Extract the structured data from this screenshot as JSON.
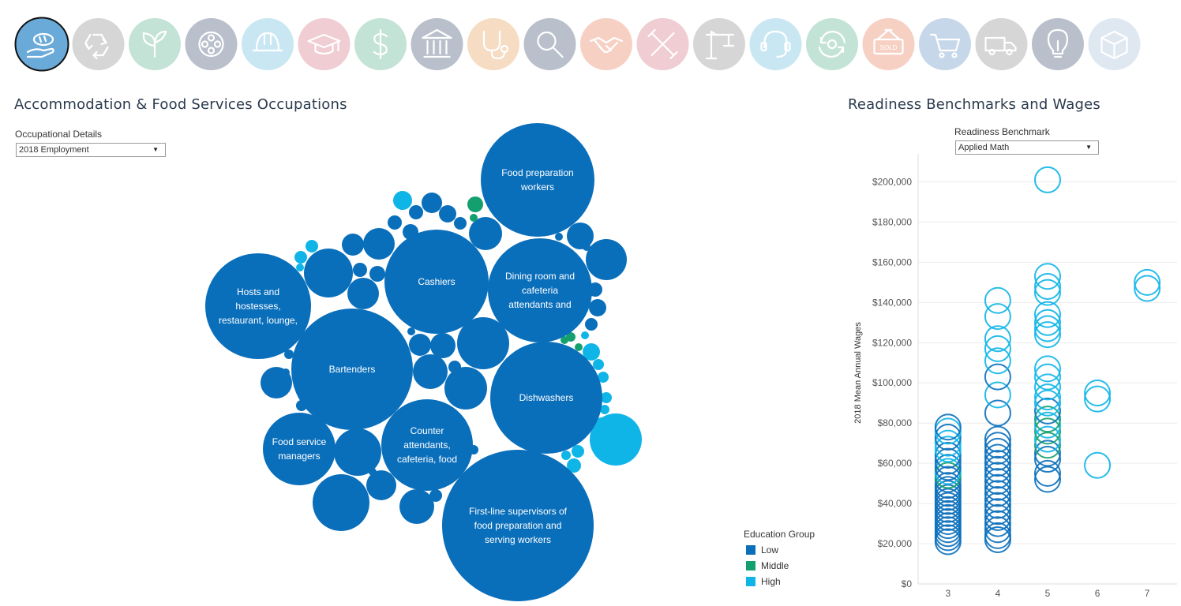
{
  "top_nav": {
    "items": [
      {
        "name": "hospitality",
        "icon": "hand-bread-icon",
        "color": "#6aaad8",
        "selected": true
      },
      {
        "name": "recycling",
        "icon": "recycle-icon",
        "color": "#d6d6d6"
      },
      {
        "name": "agriculture",
        "icon": "leaf-sprout-icon",
        "color": "#c3e3d6"
      },
      {
        "name": "media",
        "icon": "film-reel-icon",
        "color": "#b9c0cc"
      },
      {
        "name": "construction",
        "icon": "hard-hat-icon",
        "color": "#c9e7f3"
      },
      {
        "name": "education",
        "icon": "graduation-cap-icon",
        "color": "#f0ccd3"
      },
      {
        "name": "finance",
        "icon": "dollar-icon",
        "color": "#c3e3d6"
      },
      {
        "name": "government",
        "icon": "bank-building-icon",
        "color": "#b9c0cc"
      },
      {
        "name": "healthcare",
        "icon": "stethoscope-icon",
        "color": "#f7dcc4"
      },
      {
        "name": "research",
        "icon": "magnifier-icon",
        "color": "#b9c0cc"
      },
      {
        "name": "business",
        "icon": "handshake-icon",
        "color": "#f7d0c4"
      },
      {
        "name": "repair",
        "icon": "tools-icon",
        "color": "#f0ccd3"
      },
      {
        "name": "engineering",
        "icon": "crane-icon",
        "color": "#d6d6d6"
      },
      {
        "name": "support",
        "icon": "headset-icon",
        "color": "#c9e7f3"
      },
      {
        "name": "services",
        "icon": "refresh-gear-icon",
        "color": "#c3e3d6"
      },
      {
        "name": "sales",
        "icon": "sold-sign-icon",
        "color": "#f7d0c4",
        "label": "SOLD"
      },
      {
        "name": "retail",
        "icon": "shopping-cart-icon",
        "color": "#c6d7ea"
      },
      {
        "name": "transportation",
        "icon": "truck-icon",
        "color": "#d6d6d6"
      },
      {
        "name": "innovation",
        "icon": "light-bulb-icon",
        "color": "#b9c0cc"
      },
      {
        "name": "manufacturing",
        "icon": "box-icon",
        "color": "#dfe8f1"
      }
    ]
  },
  "left_panel": {
    "title": "Accommodation & Food Services Occupations",
    "filter_label": "Occupational Details",
    "filter_value": "2018 Employment"
  },
  "right_panel": {
    "title": "Readiness Benchmarks and Wages",
    "filter_label": "Readiness Benchmark",
    "filter_value": "Applied Math"
  },
  "colors": {
    "low": "#0a6fbb",
    "middle": "#14a06e",
    "high": "#10b5e8",
    "gridline": "#ececec",
    "title": "#2b3b4e"
  },
  "legend": {
    "title": "Education Group",
    "items": [
      {
        "label": "Low",
        "color": "#0a6fbb"
      },
      {
        "label": "Middle",
        "color": "#14a06e"
      },
      {
        "label": "High",
        "color": "#10b5e8"
      }
    ]
  },
  "chart_data": [
    {
      "type": "bubble",
      "title": "Accommodation & Food Services Occupations",
      "size_measure": "2018 Employment",
      "color_field": "Education Group",
      "labeled_bubbles": [
        {
          "label": "Food preparation workers",
          "group": "Low"
        },
        {
          "label": "Cashiers",
          "group": "Low"
        },
        {
          "label": "Dining room and cafeteria attendants and",
          "group": "Low"
        },
        {
          "label": "Hosts and hostesses, restaurant, lounge,",
          "group": "Low"
        },
        {
          "label": "Bartenders",
          "group": "Low"
        },
        {
          "label": "Dishwashers",
          "group": "Low"
        },
        {
          "label": "Food service managers",
          "group": "Low"
        },
        {
          "label": "Counter attendants, cafeteria, food",
          "group": "Low"
        },
        {
          "label": "First-line supervisors of food preparation and serving workers",
          "group": "Low"
        }
      ]
    },
    {
      "type": "scatter",
      "title": "Readiness Benchmarks and Wages",
      "xlabel": "",
      "ylabel": "2018 Mean Annual Wages",
      "xticks": [
        3,
        4,
        5,
        6,
        7
      ],
      "xlim": [
        2.4,
        7.6
      ],
      "ylim": [
        0,
        210000
      ],
      "yticks": [
        0,
        20000,
        40000,
        60000,
        80000,
        100000,
        120000,
        140000,
        160000,
        180000,
        200000
      ],
      "ytick_labels": [
        "$0",
        "$20,000",
        "$40,000",
        "$60,000",
        "$80,000",
        "$100,000",
        "$120,000",
        "$140,000",
        "$160,000",
        "$180,000",
        "$200,000"
      ],
      "grid": true,
      "marker": "hollow-circle",
      "points": [
        {
          "x": 3,
          "y": 21000,
          "g": "Low"
        },
        {
          "x": 3,
          "y": 23000,
          "g": "Low"
        },
        {
          "x": 3,
          "y": 25000,
          "g": "Low"
        },
        {
          "x": 3,
          "y": 27000,
          "g": "Low"
        },
        {
          "x": 3,
          "y": 29000,
          "g": "Low"
        },
        {
          "x": 3,
          "y": 31000,
          "g": "Low"
        },
        {
          "x": 3,
          "y": 33000,
          "g": "Low"
        },
        {
          "x": 3,
          "y": 35000,
          "g": "Low"
        },
        {
          "x": 3,
          "y": 37000,
          "g": "Low"
        },
        {
          "x": 3,
          "y": 39000,
          "g": "Low"
        },
        {
          "x": 3,
          "y": 41000,
          "g": "Low"
        },
        {
          "x": 3,
          "y": 43000,
          "g": "Low"
        },
        {
          "x": 3,
          "y": 45000,
          "g": "Low"
        },
        {
          "x": 3,
          "y": 47000,
          "g": "Low"
        },
        {
          "x": 3,
          "y": 49000,
          "g": "Low"
        },
        {
          "x": 3,
          "y": 52000,
          "g": "Low"
        },
        {
          "x": 3,
          "y": 54000,
          "g": "Middle"
        },
        {
          "x": 3,
          "y": 56000,
          "g": "High"
        },
        {
          "x": 3,
          "y": 58000,
          "g": "Low"
        },
        {
          "x": 3,
          "y": 61000,
          "g": "Low"
        },
        {
          "x": 3,
          "y": 64000,
          "g": "Low"
        },
        {
          "x": 3,
          "y": 67000,
          "g": "High"
        },
        {
          "x": 3,
          "y": 70000,
          "g": "High"
        },
        {
          "x": 3,
          "y": 73000,
          "g": "Low"
        },
        {
          "x": 3,
          "y": 76000,
          "g": "High"
        },
        {
          "x": 3,
          "y": 78000,
          "g": "Low"
        },
        {
          "x": 4,
          "y": 22000,
          "g": "Low"
        },
        {
          "x": 4,
          "y": 24000,
          "g": "Low"
        },
        {
          "x": 4,
          "y": 27000,
          "g": "Low"
        },
        {
          "x": 4,
          "y": 30000,
          "g": "Low"
        },
        {
          "x": 4,
          "y": 33000,
          "g": "Low"
        },
        {
          "x": 4,
          "y": 36000,
          "g": "Low"
        },
        {
          "x": 4,
          "y": 39000,
          "g": "Low"
        },
        {
          "x": 4,
          "y": 42000,
          "g": "Low"
        },
        {
          "x": 4,
          "y": 45000,
          "g": "Low"
        },
        {
          "x": 4,
          "y": 48000,
          "g": "Low"
        },
        {
          "x": 4,
          "y": 51000,
          "g": "Low"
        },
        {
          "x": 4,
          "y": 54000,
          "g": "Low"
        },
        {
          "x": 4,
          "y": 57000,
          "g": "Low"
        },
        {
          "x": 4,
          "y": 60000,
          "g": "Low"
        },
        {
          "x": 4,
          "y": 63000,
          "g": "Low"
        },
        {
          "x": 4,
          "y": 66000,
          "g": "Low"
        },
        {
          "x": 4,
          "y": 69000,
          "g": "Low"
        },
        {
          "x": 4,
          "y": 72000,
          "g": "Low"
        },
        {
          "x": 4,
          "y": 85000,
          "g": "Low"
        },
        {
          "x": 4,
          "y": 94000,
          "g": "High"
        },
        {
          "x": 4,
          "y": 103000,
          "g": "Low"
        },
        {
          "x": 4,
          "y": 111000,
          "g": "High"
        },
        {
          "x": 4,
          "y": 117000,
          "g": "High"
        },
        {
          "x": 4,
          "y": 122000,
          "g": "High"
        },
        {
          "x": 4,
          "y": 133000,
          "g": "High"
        },
        {
          "x": 4,
          "y": 141000,
          "g": "High"
        },
        {
          "x": 5,
          "y": 52000,
          "g": "Low"
        },
        {
          "x": 5,
          "y": 55000,
          "g": "Low"
        },
        {
          "x": 5,
          "y": 62000,
          "g": "Low"
        },
        {
          "x": 5,
          "y": 65000,
          "g": "Low"
        },
        {
          "x": 5,
          "y": 69000,
          "g": "Middle"
        },
        {
          "x": 5,
          "y": 72000,
          "g": "High"
        },
        {
          "x": 5,
          "y": 76000,
          "g": "Middle"
        },
        {
          "x": 5,
          "y": 79000,
          "g": "High"
        },
        {
          "x": 5,
          "y": 82000,
          "g": "Middle"
        },
        {
          "x": 5,
          "y": 86000,
          "g": "Low"
        },
        {
          "x": 5,
          "y": 90000,
          "g": "High"
        },
        {
          "x": 5,
          "y": 93000,
          "g": "High"
        },
        {
          "x": 5,
          "y": 98000,
          "g": "High"
        },
        {
          "x": 5,
          "y": 103000,
          "g": "High"
        },
        {
          "x": 5,
          "y": 107000,
          "g": "High"
        },
        {
          "x": 5,
          "y": 124000,
          "g": "High"
        },
        {
          "x": 5,
          "y": 127000,
          "g": "High"
        },
        {
          "x": 5,
          "y": 130000,
          "g": "High"
        },
        {
          "x": 5,
          "y": 134000,
          "g": "High"
        },
        {
          "x": 5,
          "y": 145000,
          "g": "High"
        },
        {
          "x": 5,
          "y": 148000,
          "g": "High"
        },
        {
          "x": 5,
          "y": 153000,
          "g": "High"
        },
        {
          "x": 5,
          "y": 201000,
          "g": "High"
        },
        {
          "x": 6,
          "y": 59000,
          "g": "High"
        },
        {
          "x": 6,
          "y": 92000,
          "g": "High"
        },
        {
          "x": 6,
          "y": 95000,
          "g": "High"
        },
        {
          "x": 7,
          "y": 147000,
          "g": "High"
        },
        {
          "x": 7,
          "y": 150000,
          "g": "High"
        }
      ]
    }
  ]
}
